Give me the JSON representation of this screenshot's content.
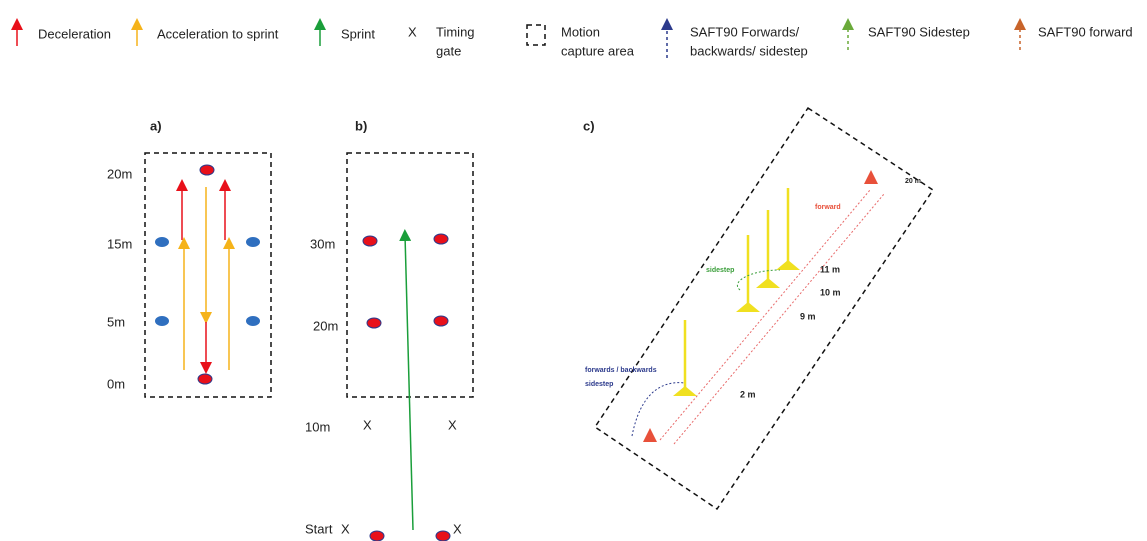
{
  "legend": [
    {
      "label": [
        "Deceleration"
      ]
    },
    {
      "label": [
        "Acceleration to sprint"
      ]
    },
    {
      "label": [
        "Sprint"
      ]
    },
    {
      "symbol": "X",
      "label": [
        "Timing",
        "gate"
      ]
    },
    {
      "label": [
        "Motion",
        "capture area"
      ]
    },
    {
      "label": [
        "SAFT90 Forwards/",
        "backwards/ sidestep"
      ]
    },
    {
      "label": [
        "SAFT90 Sidestep"
      ]
    },
    {
      "label": [
        "SAFT90 forward"
      ]
    }
  ],
  "panel_a": {
    "label": "a)",
    "distance_labels": [
      "20m",
      "15m",
      "5m",
      "0m"
    ]
  },
  "panel_b": {
    "label": "b)",
    "distance_labels": [
      "30m",
      "20m",
      "10m",
      "Start"
    ],
    "gate_marks": [
      "X",
      "X",
      "X",
      "X"
    ]
  },
  "panel_c": {
    "label": "c)",
    "annotations": [
      "20 m",
      "forward",
      "sidestep",
      "11 m",
      "10 m",
      "9 m",
      "forwards / backwards",
      "sidestep",
      "2 m"
    ]
  }
}
